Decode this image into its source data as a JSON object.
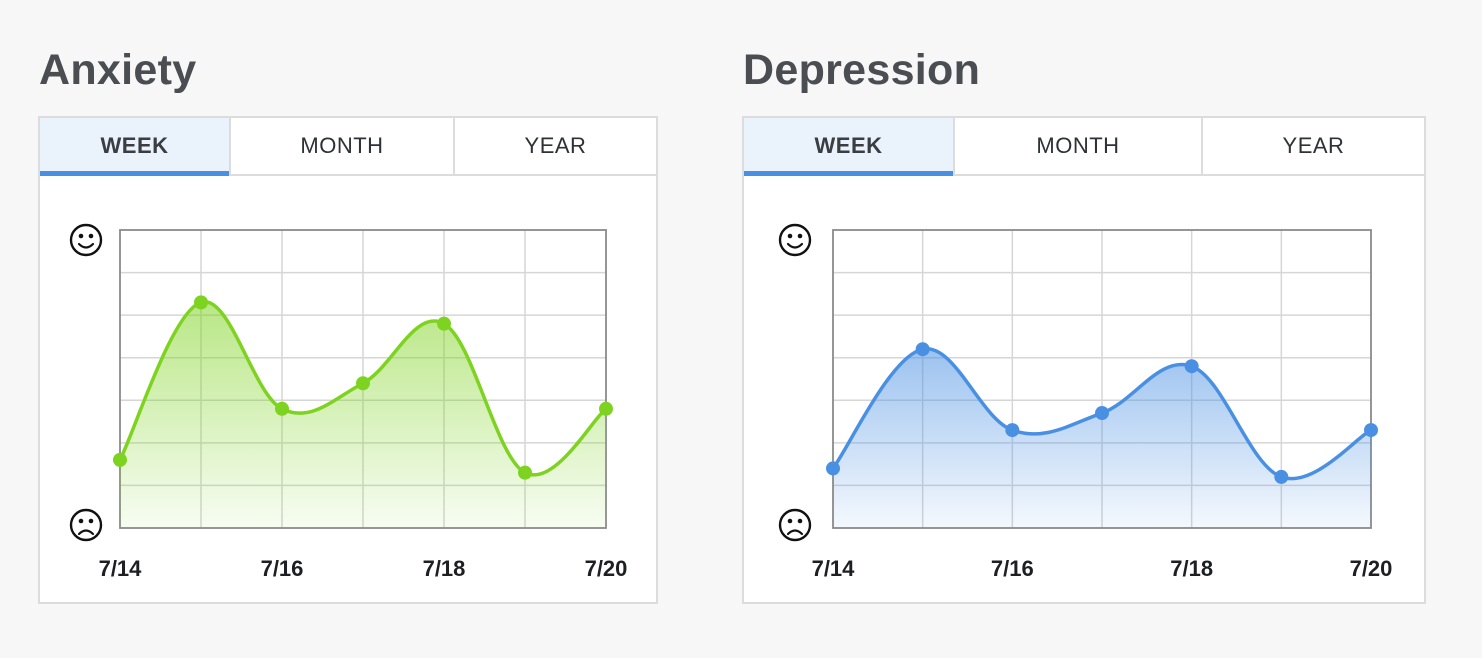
{
  "panels": [
    {
      "id": "anxiety",
      "title": "Anxiety",
      "tabs": [
        {
          "label": "WEEK",
          "active": true
        },
        {
          "label": "MONTH",
          "active": false
        },
        {
          "label": "YEAR",
          "active": false
        }
      ],
      "y_top_icon": "smiley-face-icon",
      "y_bottom_icon": "frowning-face-icon",
      "color": "#7ed321"
    },
    {
      "id": "depression",
      "title": "Depression",
      "tabs": [
        {
          "label": "WEEK",
          "active": true
        },
        {
          "label": "MONTH",
          "active": false
        },
        {
          "label": "YEAR",
          "active": false
        }
      ],
      "y_top_icon": "smiley-face-icon",
      "y_bottom_icon": "frowning-face-icon",
      "color": "#4a90e2"
    }
  ],
  "chart_data": [
    {
      "type": "area",
      "title": "Anxiety",
      "x": [
        "7/14",
        "7/15",
        "7/16",
        "7/17",
        "7/18",
        "7/19",
        "7/20"
      ],
      "tick_labels": [
        "7/14",
        "7/16",
        "7/18",
        "7/20"
      ],
      "values": [
        1.6,
        5.3,
        2.8,
        3.4,
        4.8,
        1.3,
        2.8
      ],
      "ylim": [
        0,
        7
      ],
      "grid": true,
      "color": "#7ed321"
    },
    {
      "type": "area",
      "title": "Depression",
      "x": [
        "7/14",
        "7/15",
        "7/16",
        "7/17",
        "7/18",
        "7/19",
        "7/20"
      ],
      "tick_labels": [
        "7/14",
        "7/16",
        "7/18",
        "7/20"
      ],
      "values": [
        1.4,
        4.2,
        2.3,
        2.7,
        3.8,
        1.2,
        2.3
      ],
      "ylim": [
        0,
        7
      ],
      "grid": true,
      "color": "#4a90e2"
    }
  ]
}
